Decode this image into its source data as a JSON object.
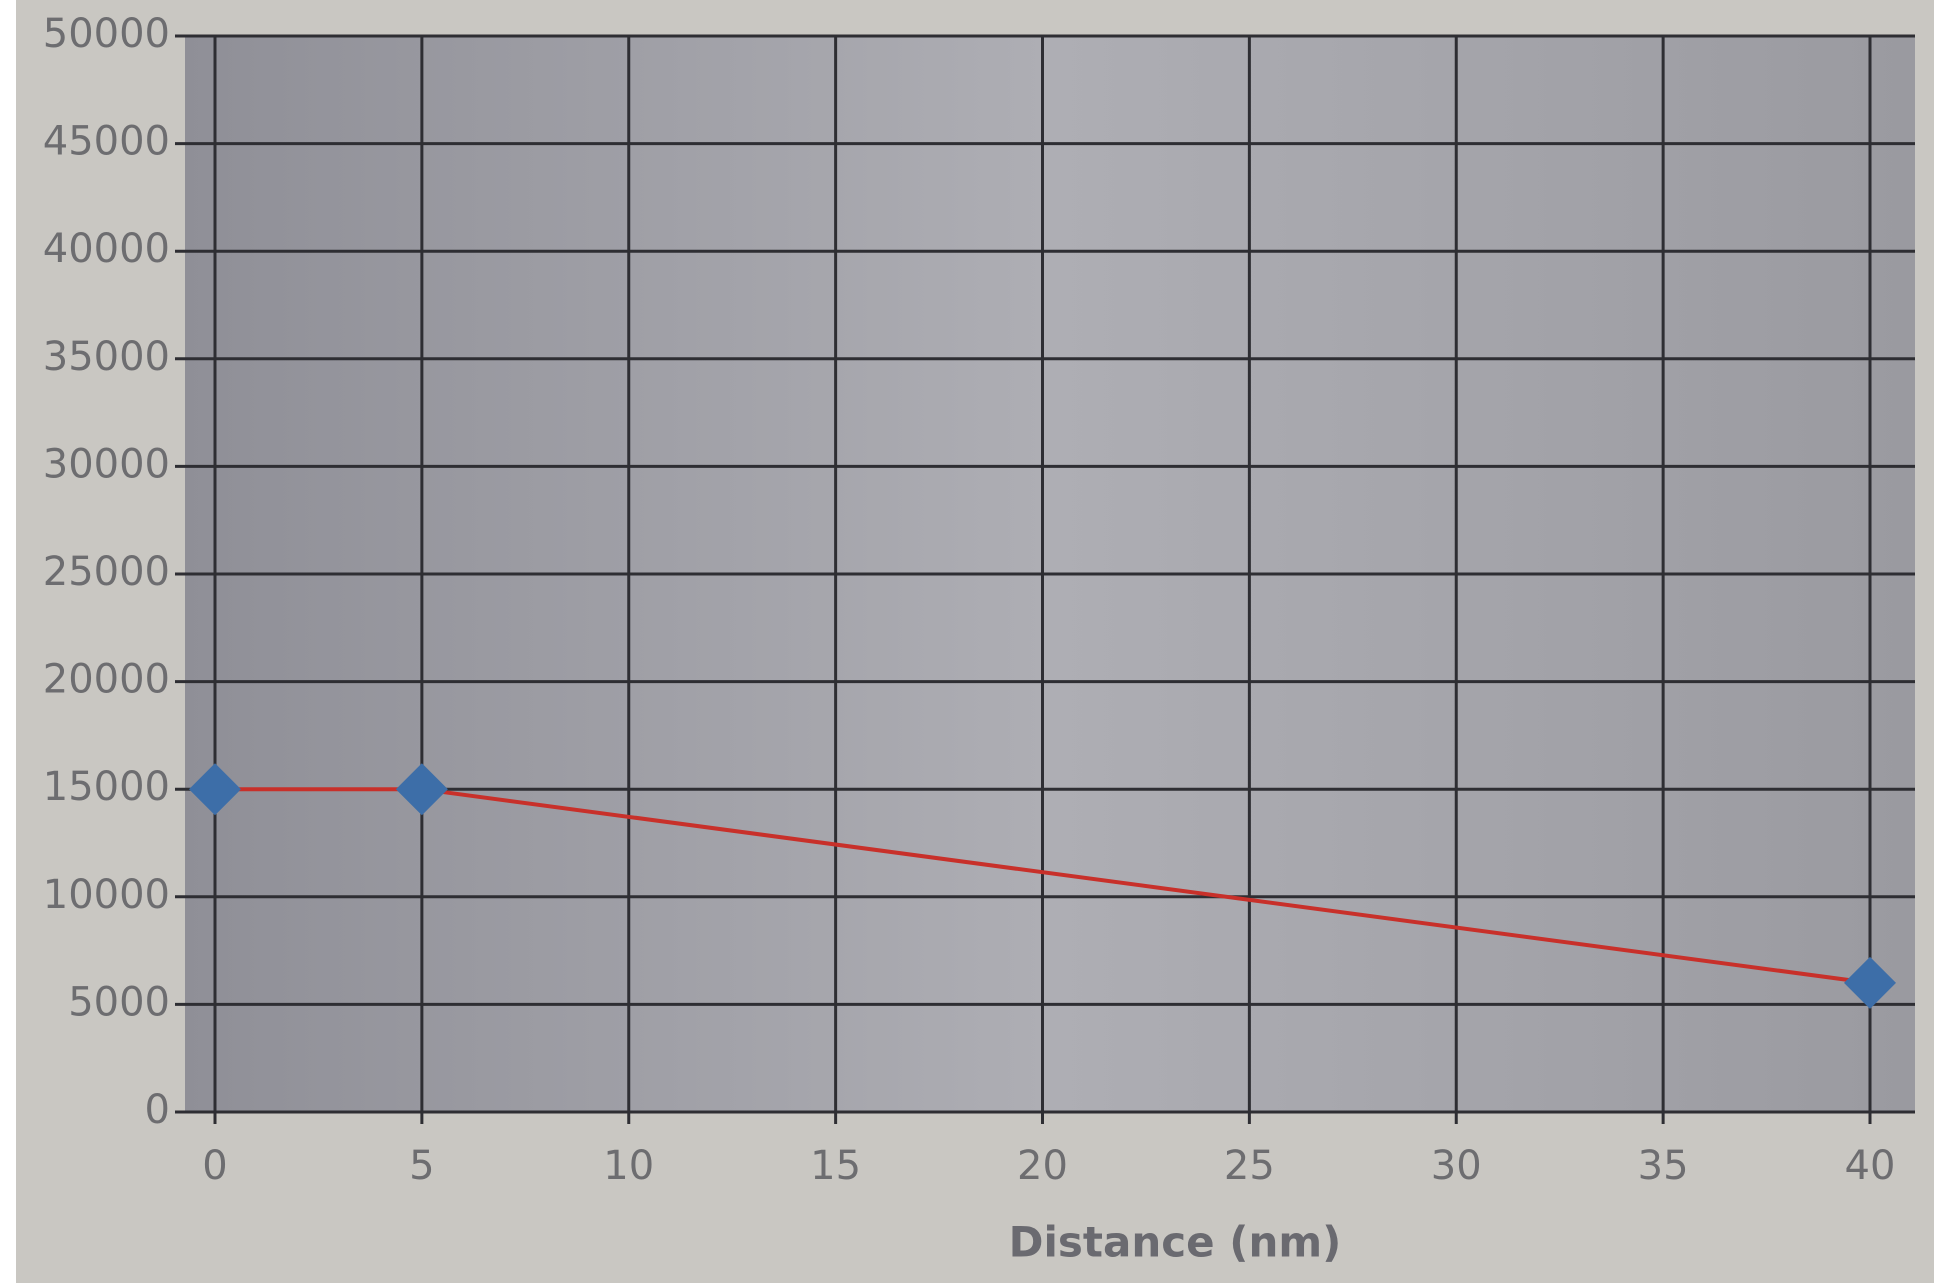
{
  "chart_data": {
    "type": "line",
    "x_label": "Distance (nm)",
    "x": [
      0,
      5,
      40
    ],
    "values": [
      15000,
      15000,
      6000
    ],
    "color": "#c8302a",
    "marker_color": "#3d6ea8",
    "xlim": [
      0,
      40
    ],
    "ylim": [
      0,
      50000
    ],
    "xticks": [
      0,
      5,
      10,
      15,
      20,
      25,
      30,
      35,
      40
    ],
    "yticks": [
      0,
      5000,
      10000,
      15000,
      20000,
      25000,
      30000,
      35000,
      40000,
      45000,
      50000
    ],
    "grid": true
  }
}
